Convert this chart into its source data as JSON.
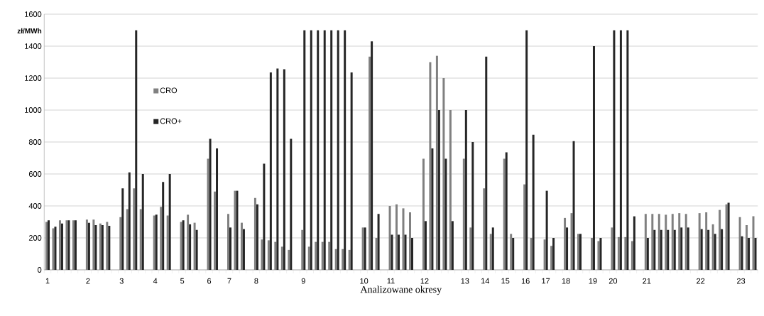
{
  "chart_data": {
    "type": "bar",
    "xlabel": "Analizowane okresy",
    "ylabel": "zł/MWh",
    "categories": [
      "1",
      null,
      null,
      null,
      null,
      null,
      "2",
      null,
      null,
      null,
      null,
      "3",
      null,
      null,
      null,
      null,
      "4",
      null,
      null,
      null,
      "5",
      null,
      null,
      null,
      "6",
      null,
      null,
      "7",
      null,
      null,
      null,
      "8",
      null,
      null,
      null,
      null,
      null,
      null,
      "9",
      null,
      null,
      null,
      null,
      null,
      null,
      null,
      null,
      "10",
      null,
      null,
      null,
      "11",
      null,
      null,
      null,
      null,
      "12",
      null,
      null,
      null,
      null,
      null,
      "13",
      null,
      null,
      "14",
      null,
      null,
      "15",
      null,
      null,
      "16",
      null,
      null,
      "17",
      null,
      null,
      "18",
      null,
      null,
      null,
      "19",
      null,
      null,
      "20",
      null,
      null,
      null,
      null,
      "21",
      null,
      null,
      null,
      null,
      null,
      null,
      null,
      "22",
      null,
      null,
      null,
      null,
      null,
      "23",
      null,
      null
    ],
    "series": [
      {
        "name": "CRO",
        "color": "#808080",
        "values": [
          300,
          260,
          310,
          310,
          310,
          null,
          315,
          315,
          290,
          300,
          null,
          330,
          380,
          510,
          380,
          null,
          340,
          395,
          340,
          null,
          300,
          345,
          295,
          null,
          695,
          490,
          null,
          350,
          495,
          295,
          null,
          450,
          190,
          185,
          175,
          145,
          125,
          null,
          250,
          145,
          175,
          175,
          175,
          130,
          130,
          125,
          null,
          265,
          1335,
          200,
          null,
          400,
          410,
          385,
          360,
          null,
          695,
          1300,
          1340,
          1200,
          1000,
          null,
          695,
          265,
          null,
          510,
          225,
          null,
          695,
          225,
          null,
          535,
          200,
          null,
          190,
          150,
          null,
          325,
          355,
          225,
          null,
          200,
          180,
          null,
          265,
          205,
          205,
          180,
          null,
          350,
          350,
          350,
          345,
          350,
          355,
          350,
          null,
          355,
          360,
          285,
          375,
          410,
          null,
          330,
          280,
          335
        ]
      },
      {
        "name": "CRO+",
        "color": "#262626",
        "values": [
          310,
          270,
          290,
          310,
          310,
          null,
          295,
          280,
          280,
          275,
          null,
          510,
          610,
          1500,
          600,
          null,
          345,
          550,
          600,
          null,
          310,
          285,
          250,
          null,
          820,
          760,
          null,
          265,
          495,
          255,
          null,
          410,
          665,
          1235,
          1260,
          1255,
          820,
          null,
          1500,
          1500,
          1500,
          1500,
          1500,
          1500,
          1500,
          1235,
          null,
          265,
          1430,
          350,
          null,
          220,
          220,
          220,
          200,
          null,
          305,
          760,
          1000,
          695,
          305,
          null,
          1000,
          800,
          null,
          1335,
          265,
          null,
          735,
          200,
          null,
          1500,
          845,
          null,
          495,
          200,
          null,
          265,
          805,
          225,
          null,
          1400,
          200,
          null,
          1500,
          1500,
          1500,
          335,
          null,
          200,
          250,
          250,
          250,
          250,
          265,
          265,
          null,
          255,
          250,
          225,
          255,
          420,
          null,
          210,
          200,
          200
        ]
      }
    ],
    "ylim": [
      0,
      1600
    ],
    "yticks": [
      0,
      200,
      400,
      600,
      800,
      1000,
      1200,
      1400,
      1600
    ],
    "grid": "y",
    "legend": "left"
  }
}
